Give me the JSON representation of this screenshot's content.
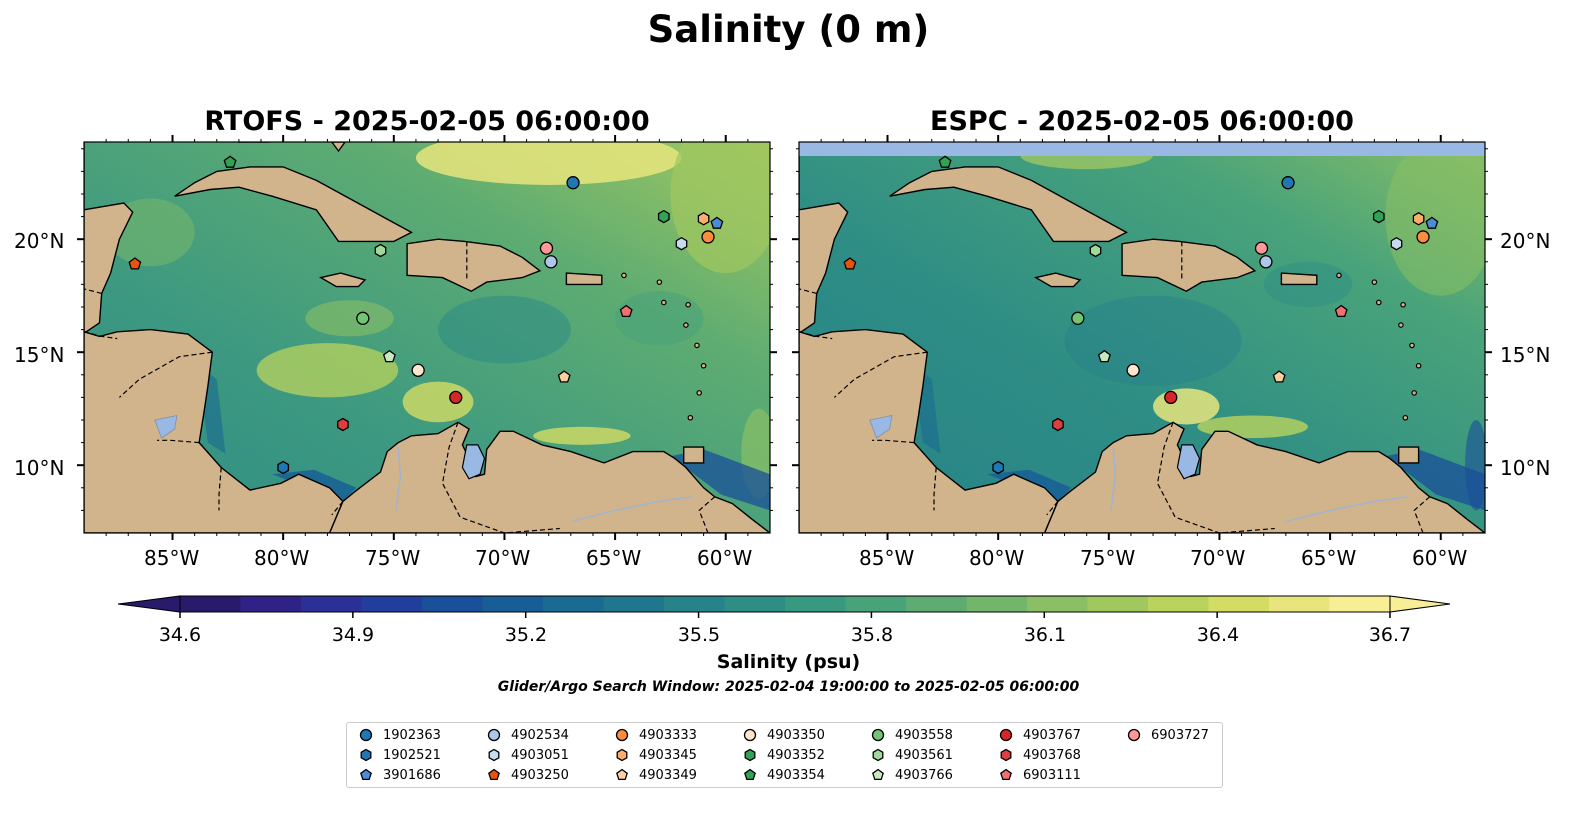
{
  "figure": {
    "suptitle": "Salinity (0 m)",
    "search_window": "Glider/Argo Search Window: 2025-02-04 19:00:00 to 2025-02-05 06:00:00"
  },
  "panels": [
    {
      "title": "RTOFS - 2025-02-05 06:00:00",
      "model": "RTOFS"
    },
    {
      "title": "ESPC - 2025-02-05 06:00:00",
      "model": "ESPC"
    }
  ],
  "map_extent": {
    "lon": [
      -89,
      -58
    ],
    "lat": [
      7,
      24.3
    ]
  },
  "lon_ticks": [
    {
      "value": -85,
      "label": "85°W"
    },
    {
      "value": -80,
      "label": "80°W"
    },
    {
      "value": -75,
      "label": "75°W"
    },
    {
      "value": -70,
      "label": "70°W"
    },
    {
      "value": -65,
      "label": "65°W"
    },
    {
      "value": -60,
      "label": "60°W"
    }
  ],
  "lat_ticks": [
    {
      "value": 20,
      "label": "20°N"
    },
    {
      "value": 15,
      "label": "15°N"
    },
    {
      "value": 10,
      "label": "10°N"
    }
  ],
  "colorbar": {
    "label": "Salinity (psu)",
    "min": 34.6,
    "max": 36.7,
    "extend": "both",
    "ticks": [
      {
        "value": 34.6,
        "label": "34.6"
      },
      {
        "value": 34.9,
        "label": "34.9"
      },
      {
        "value": 35.2,
        "label": "35.2"
      },
      {
        "value": 35.5,
        "label": "35.5"
      },
      {
        "value": 35.8,
        "label": "35.8"
      },
      {
        "value": 36.1,
        "label": "36.1"
      },
      {
        "value": 36.4,
        "label": "36.4"
      },
      {
        "value": 36.7,
        "label": "36.7"
      }
    ],
    "colors": [
      "#2a1a6b",
      "#2e2287",
      "#2b2f96",
      "#213e9c",
      "#1a4f9a",
      "#175d96",
      "#1a6a91",
      "#20768d",
      "#278289",
      "#2e8d85",
      "#399880",
      "#49a37a",
      "#5eac72",
      "#74b56c",
      "#8abf65",
      "#a1c85f",
      "#bad35c",
      "#d3dc63",
      "#e8e57d",
      "#f7ee95"
    ]
  },
  "colors": {
    "land": "#d1b48c",
    "lake": "#99b8e3",
    "ocean_mid": "#3d9980",
    "ocean_low": "#2a1a6b",
    "ocean_high": "#f7ee95"
  },
  "floats": [
    {
      "id": "1902363",
      "marker": "circle",
      "color": "#1f77b4",
      "lon": -66.9,
      "lat": 22.5
    },
    {
      "id": "1902521",
      "marker": "hexagon",
      "color": "#1f77b4",
      "lon": -80.0,
      "lat": 9.9
    },
    {
      "id": "3901686",
      "marker": "pentagon",
      "color": "#4c8cd6",
      "lon": -60.4,
      "lat": 20.7
    },
    {
      "id": "4902534",
      "marker": "circle",
      "color": "#aec7e8",
      "lon": -67.9,
      "lat": 19.0
    },
    {
      "id": "4903051",
      "marker": "hexagon",
      "color": "#c6dbef",
      "lon": -62.0,
      "lat": 19.8
    },
    {
      "id": "4903250",
      "marker": "pentagon",
      "color": "#e6550d",
      "lon": -86.7,
      "lat": 18.9
    },
    {
      "id": "4903333",
      "marker": "circle",
      "color": "#fd8d3c",
      "lon": -60.8,
      "lat": 20.1
    },
    {
      "id": "4903345",
      "marker": "hexagon",
      "color": "#fdae6b",
      "lon": -61.0,
      "lat": 20.9
    },
    {
      "id": "4903349",
      "marker": "pentagon",
      "color": "#fdd0a2",
      "lon": -67.3,
      "lat": 13.9
    },
    {
      "id": "4903350",
      "marker": "circle",
      "color": "#fee6ce",
      "lon": -73.9,
      "lat": 14.2
    },
    {
      "id": "4903352",
      "marker": "hexagon",
      "color": "#31a354",
      "lon": -62.8,
      "lat": 21.0
    },
    {
      "id": "4903354",
      "marker": "pentagon",
      "color": "#31a354",
      "lon": -82.4,
      "lat": 23.4
    },
    {
      "id": "4903558",
      "marker": "circle",
      "color": "#74c476",
      "lon": -76.4,
      "lat": 16.5
    },
    {
      "id": "4903561",
      "marker": "hexagon",
      "color": "#a1d99b",
      "lon": -75.6,
      "lat": 19.5
    },
    {
      "id": "4903766",
      "marker": "pentagon",
      "color": "#c7e9c0",
      "lon": -75.2,
      "lat": 14.8
    },
    {
      "id": "4903767",
      "marker": "circle",
      "color": "#d62728",
      "lon": -72.2,
      "lat": 13.0
    },
    {
      "id": "4903768",
      "marker": "hexagon",
      "color": "#e03e3e",
      "lon": -77.3,
      "lat": 11.8
    },
    {
      "id": "6903111",
      "marker": "pentagon",
      "color": "#f07070",
      "lon": -64.5,
      "lat": 16.8
    },
    {
      "id": "6903727",
      "marker": "circle",
      "color": "#ff9896",
      "lon": -68.1,
      "lat": 19.6
    }
  ]
}
